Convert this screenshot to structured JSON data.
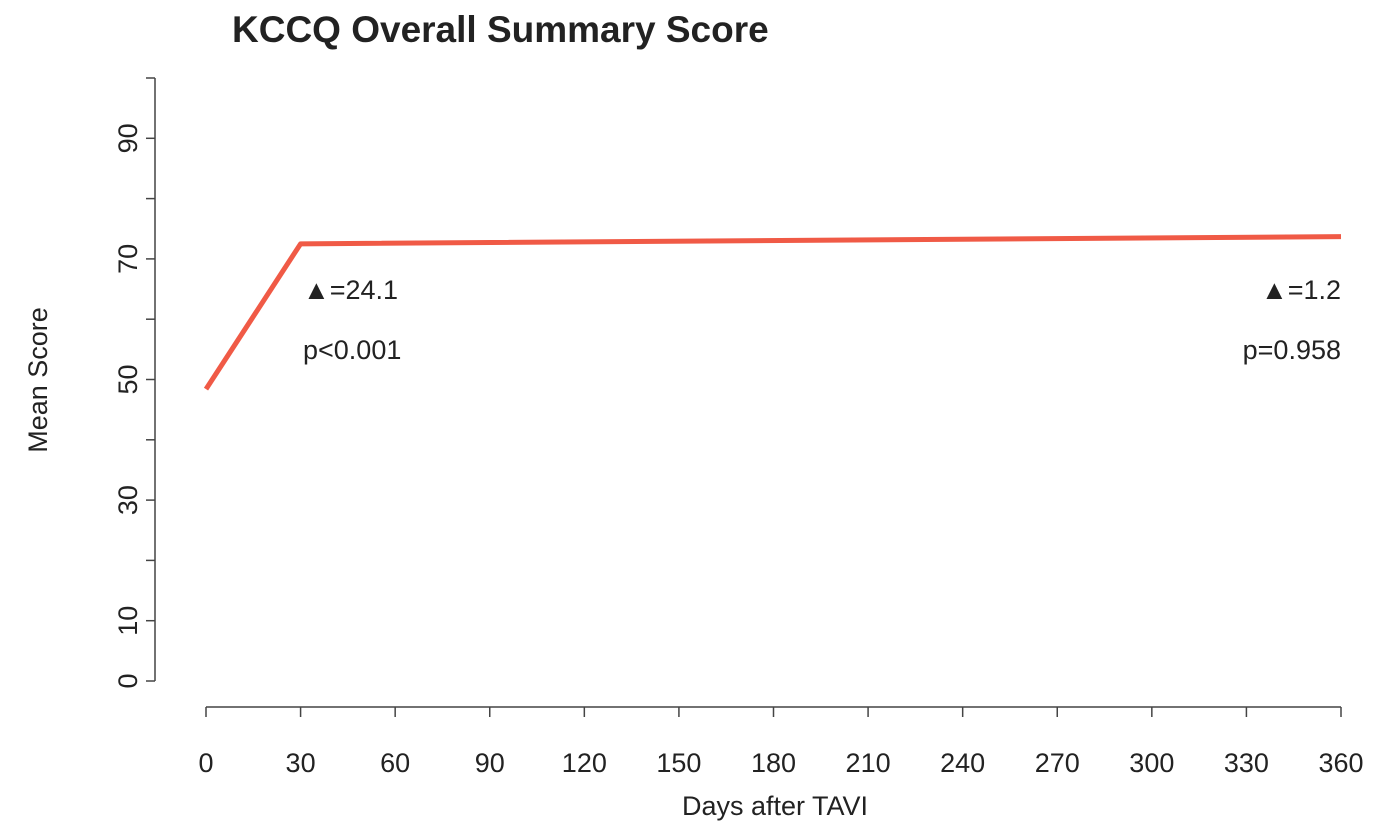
{
  "chart_data": {
    "type": "line",
    "title": "KCCQ Overall Summary Score",
    "x_label": "Days after TAVI",
    "y_label": "Mean Score",
    "series": [
      {
        "name": "KCCQ",
        "color": "#f05a46",
        "x": [
          0,
          30,
          360
        ],
        "values": [
          48.4,
          72.5,
          73.7
        ]
      }
    ],
    "xlim": [
      0,
      360
    ],
    "xticks": [
      0,
      30,
      60,
      90,
      120,
      150,
      180,
      210,
      240,
      270,
      300,
      330,
      360
    ],
    "ylim": [
      0,
      100
    ],
    "yticks": [
      0,
      10,
      30,
      50,
      70,
      90
    ],
    "yminor_ticks": [
      20,
      40,
      60,
      80,
      100
    ],
    "annotations": [
      "▲=24.1",
      "p<0.001",
      "▲=1.2",
      "p=0.958"
    ],
    "grid": false
  }
}
